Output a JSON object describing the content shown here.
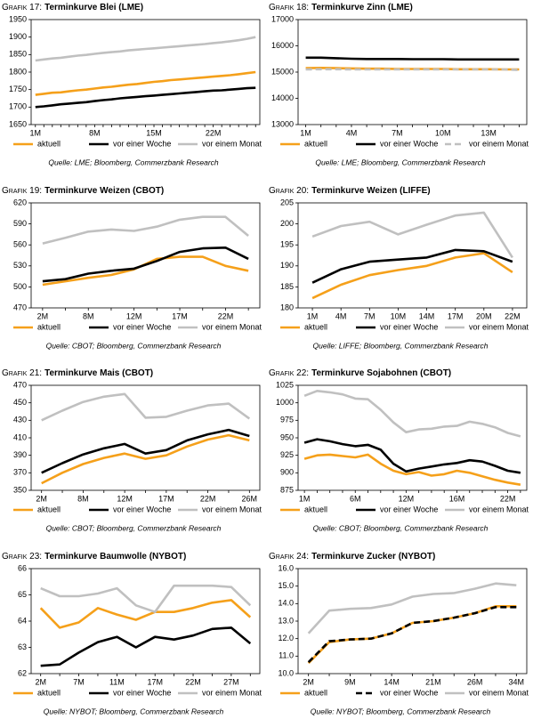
{
  "chart_data": [
    {
      "type": "line",
      "label": "Grafik 17:",
      "title": "Terminkurve Blei (LME)",
      "categories": [
        "1M",
        null,
        null,
        null,
        null,
        null,
        null,
        "8M",
        null,
        null,
        null,
        null,
        null,
        null,
        "15M",
        null,
        null,
        null,
        null,
        null,
        null,
        "22M",
        null,
        null,
        null,
        null,
        null
      ],
      "ylim": [
        1650,
        1950
      ],
      "yticks": [
        1650,
        1700,
        1750,
        1800,
        1850,
        1900,
        1950
      ],
      "series": [
        {
          "name": "aktuell",
          "color": "#f5a01a",
          "values": [
            1735,
            1738,
            1741,
            1742,
            1745,
            1748,
            1750,
            1753,
            1756,
            1758,
            1761,
            1764,
            1766,
            1769,
            1772,
            1774,
            1777,
            1779,
            1781,
            1783,
            1785,
            1787,
            1789,
            1791,
            1794,
            1797,
            1800
          ]
        },
        {
          "name": "vor einer Woche",
          "color": "#000000",
          "values": [
            1700,
            1702,
            1705,
            1708,
            1710,
            1712,
            1714,
            1717,
            1720,
            1722,
            1725,
            1727,
            1729,
            1731,
            1733,
            1735,
            1737,
            1739,
            1741,
            1743,
            1745,
            1747,
            1748,
            1750,
            1752,
            1754,
            1755
          ]
        },
        {
          "name": "vor einem Monat",
          "color": "#c0c0c0",
          "values": [
            1833,
            1836,
            1839,
            1841,
            1844,
            1847,
            1849,
            1852,
            1855,
            1857,
            1859,
            1862,
            1864,
            1866,
            1868,
            1870,
            1872,
            1874,
            1876,
            1878,
            1880,
            1883,
            1885,
            1888,
            1891,
            1895,
            1900
          ]
        }
      ],
      "source": "Quelle: LME; Bloomberg, Commerzbank Research"
    },
    {
      "type": "line",
      "label": "Grafik 18:",
      "title": "Terminkurve Zinn (LME)",
      "categories": [
        "1M",
        null,
        null,
        "4M",
        null,
        null,
        "7M",
        null,
        null,
        "10M",
        null,
        null,
        "13M",
        null,
        null
      ],
      "ylim": [
        13000,
        17000
      ],
      "yticks": [
        13000,
        14000,
        15000,
        16000,
        17000
      ],
      "series": [
        {
          "name": "aktuell",
          "color": "#f5a01a",
          "values": [
            15150,
            15160,
            15150,
            15140,
            15130,
            15130,
            15120,
            15120,
            15120,
            15120,
            15110,
            15110,
            15110,
            15100,
            15100
          ]
        },
        {
          "name": "vor einer Woche",
          "color": "#000000",
          "values": [
            15550,
            15550,
            15530,
            15510,
            15500,
            15500,
            15500,
            15490,
            15490,
            15490,
            15480,
            15480,
            15480,
            15480,
            15480
          ]
        },
        {
          "name": "vor einem Monat",
          "color": "#c0c0c0",
          "dash": true,
          "values": [
            15100,
            15110,
            15110,
            15100,
            15100,
            15100,
            15100,
            15100,
            15100,
            15100,
            15100,
            15100,
            15100,
            15100,
            15080
          ]
        }
      ],
      "source": "Quelle: LME; Bloomberg, Commerzbank Research"
    },
    {
      "type": "line",
      "label": "Grafik 19:",
      "title": "Terminkurve Weizen (CBOT)",
      "categories": [
        "2M",
        null,
        "8M",
        null,
        "12M",
        null,
        "17M",
        null,
        "22M",
        null
      ],
      "ylim": [
        470,
        620
      ],
      "yticks": [
        470,
        500,
        530,
        560,
        590,
        620
      ],
      "series": [
        {
          "name": "aktuell",
          "color": "#f5a01a",
          "values": [
            503,
            508,
            513,
            517,
            525,
            540,
            543,
            543,
            530,
            523
          ]
        },
        {
          "name": "vor einer Woche",
          "color": "#000000",
          "values": [
            508,
            511,
            519,
            523,
            526,
            537,
            550,
            555,
            556,
            540
          ]
        },
        {
          "name": "vor einem Monat",
          "color": "#c0c0c0",
          "values": [
            562,
            570,
            579,
            582,
            580,
            586,
            596,
            600,
            600,
            573
          ]
        }
      ],
      "source": "Quelle: CBOT; Bloomberg, Commerzbank Research"
    },
    {
      "type": "line",
      "label": "Grafik 20:",
      "title": "Terminkurve Weizen (LIFFE)",
      "categories": [
        "1M",
        "4M",
        "7M",
        "10M",
        "14M",
        "17M",
        "20M",
        "22M"
      ],
      "ylim": [
        180,
        205
      ],
      "yticks": [
        180,
        185,
        190,
        195,
        200,
        205
      ],
      "series": [
        {
          "name": "aktuell",
          "color": "#f5a01a",
          "values": [
            182.3,
            185.5,
            187.8,
            189.0,
            190.0,
            192.0,
            193.0,
            188.5
          ]
        },
        {
          "name": "vor einer Woche",
          "color": "#000000",
          "values": [
            186,
            189.2,
            191,
            191.5,
            192,
            193.8,
            193.5,
            191
          ]
        },
        {
          "name": "vor einem Monat",
          "color": "#c0c0c0",
          "values": [
            197,
            199.5,
            200.5,
            197.5,
            199.8,
            202,
            202.7,
            192
          ]
        }
      ],
      "source": "Quelle: LIFFE; Bloomberg, Commerzbank Research"
    },
    {
      "type": "line",
      "label": "Grafik 21:",
      "title": "Terminkurve Mais (CBOT)",
      "categories": [
        "2M",
        null,
        "8M",
        null,
        "12M",
        null,
        "17M",
        null,
        "22M",
        null,
        "26M"
      ],
      "ylim": [
        350,
        470
      ],
      "yticks": [
        350,
        370,
        390,
        410,
        430,
        450,
        470
      ],
      "series": [
        {
          "name": "aktuell",
          "color": "#f5a01a",
          "values": [
            358,
            370,
            380,
            387,
            392,
            386,
            390,
            400,
            408,
            413,
            407
          ]
        },
        {
          "name": "vor einer Woche",
          "color": "#000000",
          "values": [
            370,
            381,
            391,
            398,
            403,
            392,
            396,
            407,
            414,
            419,
            412
          ]
        },
        {
          "name": "vor einem Monat",
          "color": "#c0c0c0",
          "values": [
            430,
            441,
            451,
            457,
            460,
            433,
            434,
            441,
            447,
            449,
            432
          ]
        }
      ],
      "source": "Quelle: CBOT; Bloomberg, Commerzbank Research"
    },
    {
      "type": "line",
      "label": "Grafik 22:",
      "title": "Terminkurve Sojabohnen (CBOT)",
      "categories": [
        "1M",
        null,
        null,
        null,
        "6M",
        null,
        null,
        null,
        "12M",
        null,
        null,
        null,
        "16M",
        null,
        null,
        null,
        "22M",
        null
      ],
      "ylim": [
        875,
        1025
      ],
      "yticks": [
        875,
        900,
        925,
        950,
        975,
        1000,
        1025
      ],
      "series": [
        {
          "name": "aktuell",
          "color": "#f5a01a",
          "values": [
            920,
            925,
            926,
            924,
            922,
            926,
            913,
            903,
            898,
            901,
            896,
            898,
            903,
            900,
            895,
            890,
            886,
            883
          ]
        },
        {
          "name": "vor einer Woche",
          "color": "#000000",
          "values": [
            943,
            948,
            945,
            941,
            938,
            940,
            933,
            913,
            902,
            906,
            909,
            912,
            914,
            918,
            916,
            910,
            903,
            900
          ]
        },
        {
          "name": "vor einem Monat",
          "color": "#c0c0c0",
          "values": [
            1010,
            1017,
            1015,
            1012,
            1006,
            1005,
            990,
            972,
            958,
            962,
            963,
            966,
            967,
            973,
            970,
            965,
            957,
            952
          ]
        }
      ],
      "source": "Quelle: CBOT; Bloomberg, Commerzbank Research"
    },
    {
      "type": "line",
      "label": "Grafik 23:",
      "title": "Terminkurve Baumwolle (NYBOT)",
      "categories": [
        "2M",
        null,
        "7M",
        null,
        "11M",
        null,
        "17M",
        null,
        "22M",
        null,
        "27M",
        null
      ],
      "ylim": [
        62,
        66
      ],
      "yticks": [
        62,
        63,
        64,
        65,
        66
      ],
      "series": [
        {
          "name": "aktuell",
          "color": "#f5a01a",
          "values": [
            64.5,
            63.75,
            63.95,
            64.5,
            64.25,
            64.05,
            64.35,
            64.35,
            64.5,
            64.7,
            64.8,
            64.15
          ]
        },
        {
          "name": "vor einer Woche",
          "color": "#000000",
          "values": [
            62.3,
            62.35,
            62.8,
            63.2,
            63.4,
            63.0,
            63.4,
            63.3,
            63.45,
            63.7,
            63.75,
            63.15
          ]
        },
        {
          "name": "vor einem Monat",
          "color": "#c0c0c0",
          "values": [
            65.25,
            64.95,
            64.95,
            65.05,
            65.25,
            64.6,
            64.35,
            65.35,
            65.35,
            65.35,
            65.3,
            64.6
          ]
        }
      ],
      "source": "Quelle: NYBOT; Bloomberg, Commerzbank Research"
    },
    {
      "type": "line",
      "label": "Grafik 24:",
      "title": "Terminkurve Zucker (NYBOT)",
      "categories": [
        "2M",
        null,
        "9M",
        null,
        "14M",
        null,
        "21M",
        null,
        "26M",
        null,
        "34M"
      ],
      "ylim": [
        10,
        16
      ],
      "yticks": [
        {
          "value": 10,
          "label": "10.0"
        },
        {
          "value": 11,
          "label": "11.0"
        },
        {
          "value": 12,
          "label": "12.0"
        },
        {
          "value": 13,
          "label": "13.0"
        },
        {
          "value": 14,
          "label": "14.0"
        },
        {
          "value": 15,
          "label": "15.0"
        },
        {
          "value": 16,
          "label": "16.0"
        }
      ],
      "series": [
        {
          "name": "aktuell",
          "color": "#f5a01a",
          "values": [
            10.6,
            11.8,
            11.95,
            12.0,
            12.3,
            12.9,
            13.0,
            13.2,
            13.45,
            13.85,
            13.85
          ]
        },
        {
          "name": "vor einer Woche",
          "color": "#000000",
          "dash": true,
          "values": [
            10.65,
            11.85,
            11.95,
            12.0,
            12.3,
            12.9,
            13.0,
            13.2,
            13.45,
            13.8,
            13.8
          ]
        },
        {
          "name": "vor einem Monat",
          "color": "#c0c0c0",
          "values": [
            12.3,
            13.6,
            13.7,
            13.75,
            13.95,
            14.4,
            14.55,
            14.6,
            14.85,
            15.15,
            15.05
          ]
        }
      ],
      "source": "Quelle: NYBOT; Bloomberg, Commerzbank Research"
    }
  ]
}
